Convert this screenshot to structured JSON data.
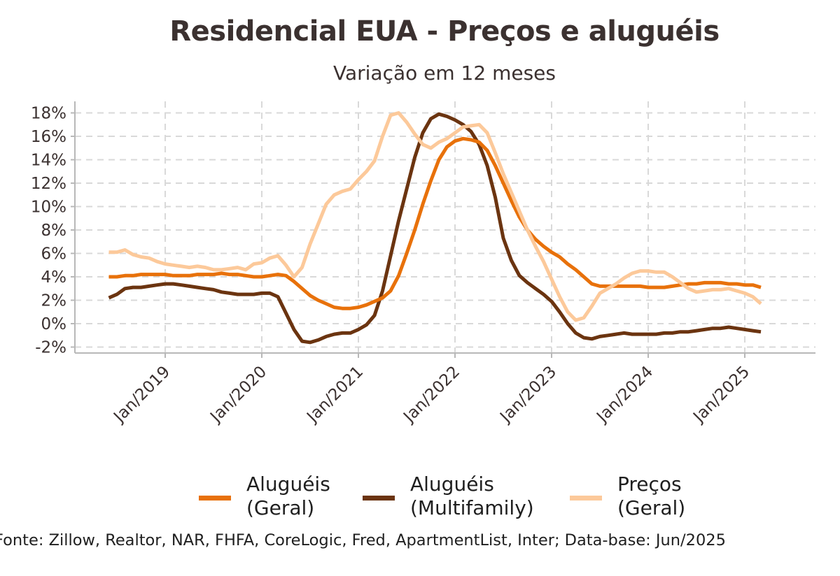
{
  "title": "Residencial EUA - Preços e aluguéis",
  "subtitle": "Variação em 12 meses",
  "caption": "Fonte: Zillow, Realtor, NAR, FHFA, CoreLogic, Fred, ApartmentList, Inter; Data-base: Jun/2025",
  "chart_data": {
    "type": "line",
    "title": "Residencial EUA - Preços e aluguéis",
    "subtitle": "Variação em 12 meses",
    "xlabel": "",
    "ylabel": "",
    "ylim": [
      -2.5,
      18.5
    ],
    "yticks": [
      -2,
      0,
      2,
      4,
      6,
      8,
      10,
      12,
      14,
      16,
      18
    ],
    "ytick_labels": [
      "-2%",
      "0%",
      "2%",
      "4%",
      "6%",
      "8%",
      "10%",
      "12%",
      "14%",
      "16%",
      "18%"
    ],
    "xticks": [
      "2019-01",
      "2020-01",
      "2021-01",
      "2022-01",
      "2023-01",
      "2024-01",
      "2025-01"
    ],
    "xtick_labels": [
      "Jan/2019",
      "Jan/2020",
      "Jan/2021",
      "Jan/2022",
      "Jan/2023",
      "Jan/2024",
      "Jan/2025"
    ],
    "xlim": [
      "2018-01",
      "2025-11"
    ],
    "grid": true,
    "legend_position": "bottom",
    "series": [
      {
        "name": "Aluguéis\n(Geral)",
        "color": "#e8710a",
        "start": "2018-06",
        "values": [
          4.0,
          4.0,
          4.1,
          4.1,
          4.2,
          4.2,
          4.2,
          4.2,
          4.1,
          4.1,
          4.1,
          4.2,
          4.2,
          4.2,
          4.3,
          4.2,
          4.2,
          4.1,
          4.0,
          4.0,
          4.1,
          4.2,
          4.1,
          3.6,
          3.0,
          2.4,
          2.0,
          1.7,
          1.4,
          1.3,
          1.3,
          1.4,
          1.6,
          1.9,
          2.2,
          2.8,
          4.1,
          6.0,
          8.0,
          10.2,
          12.2,
          14.0,
          15.1,
          15.6,
          15.8,
          15.7,
          15.5,
          14.8,
          13.5,
          12.0,
          10.5,
          9.1,
          8.0,
          7.2,
          6.6,
          6.1,
          5.7,
          5.1,
          4.6,
          4.0,
          3.4,
          3.2,
          3.2,
          3.2,
          3.2,
          3.2,
          3.2,
          3.1,
          3.1,
          3.1,
          3.2,
          3.3,
          3.4,
          3.4,
          3.5,
          3.5,
          3.5,
          3.4,
          3.4,
          3.3,
          3.3,
          3.1
        ]
      },
      {
        "name": "Aluguéis\n(Multifamily)",
        "color": "#6b3410",
        "start": "2018-06",
        "values": [
          2.2,
          2.5,
          3.0,
          3.1,
          3.1,
          3.2,
          3.3,
          3.4,
          3.4,
          3.3,
          3.2,
          3.1,
          3.0,
          2.9,
          2.7,
          2.6,
          2.5,
          2.5,
          2.5,
          2.6,
          2.6,
          2.3,
          0.9,
          -0.5,
          -1.5,
          -1.6,
          -1.4,
          -1.1,
          -0.9,
          -0.8,
          -0.8,
          -0.5,
          -0.1,
          0.7,
          2.8,
          5.8,
          8.8,
          11.5,
          14.2,
          16.3,
          17.5,
          17.9,
          17.7,
          17.4,
          17.0,
          16.4,
          15.3,
          13.5,
          10.8,
          7.3,
          5.4,
          4.1,
          3.5,
          3.0,
          2.5,
          1.9,
          1.0,
          0.0,
          -0.8,
          -1.2,
          -1.3,
          -1.1,
          -1.0,
          -0.9,
          -0.8,
          -0.9,
          -0.9,
          -0.9,
          -0.9,
          -0.8,
          -0.8,
          -0.7,
          -0.7,
          -0.6,
          -0.5,
          -0.4,
          -0.4,
          -0.3,
          -0.4,
          -0.5,
          -0.6,
          -0.7
        ]
      },
      {
        "name": "Preços\n(Geral)",
        "color": "#fcc99a",
        "start": "2018-06",
        "values": [
          6.1,
          6.1,
          6.3,
          5.9,
          5.7,
          5.6,
          5.3,
          5.1,
          5.0,
          4.9,
          4.8,
          4.9,
          4.8,
          4.6,
          4.6,
          4.7,
          4.8,
          4.6,
          5.1,
          5.2,
          5.6,
          5.8,
          5.0,
          4.0,
          4.8,
          6.8,
          8.5,
          10.2,
          11.0,
          11.3,
          11.5,
          12.3,
          13.0,
          13.9,
          16.0,
          17.8,
          18.0,
          17.2,
          16.2,
          15.3,
          15.0,
          15.5,
          15.8,
          16.3,
          16.8,
          16.9,
          17.0,
          16.3,
          14.6,
          12.8,
          11.2,
          9.6,
          8.0,
          6.6,
          5.3,
          3.8,
          2.3,
          1.0,
          0.3,
          0.5,
          1.5,
          2.6,
          3.0,
          3.4,
          3.9,
          4.3,
          4.5,
          4.5,
          4.4,
          4.4,
          4.0,
          3.5,
          3.0,
          2.7,
          2.8,
          2.9,
          2.9,
          3.0,
          2.8,
          2.6,
          2.3,
          1.7
        ]
      }
    ]
  }
}
